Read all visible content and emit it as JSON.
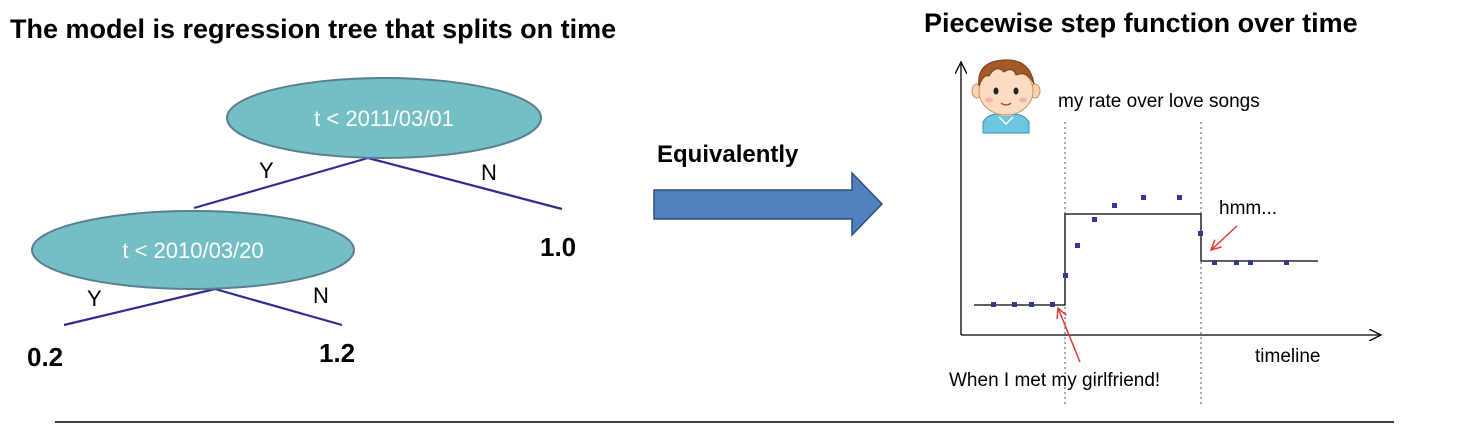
{
  "left_panel": {
    "title": "The model is regression tree that splits on time",
    "root_node": "t < 2011/03/01",
    "child_node": "t < 2010/03/20",
    "root_yes": "Y",
    "root_no": "N",
    "child_yes": "Y",
    "child_no": "N",
    "leaf_root_no": "1.0",
    "leaf_child_yes": "0.2",
    "leaf_child_no": "1.2"
  },
  "middle": {
    "label": "Equivalently",
    "arrow_color": "#4f81bd"
  },
  "right_panel": {
    "title": "Piecewise step function over time",
    "series_label": "my rate over love songs",
    "x_axis_label": "timeline",
    "annotation_hmm": "hmm...",
    "annotation_met": "When I met my girlfriend!",
    "boy_icon": "boy-face-icon"
  },
  "colors": {
    "node_fill": "#74bfc4",
    "node_stroke": "#5a7f93",
    "tree_line": "#2e2e8f",
    "point": "#2e3b8f",
    "annotation_arrow": "#e03a3a"
  },
  "chart_data": {
    "type": "scatter",
    "x_axis": "timeline",
    "series_label": "my rate over love songs",
    "step_levels": [
      "low",
      "high",
      "medium"
    ],
    "change_points": [
      "When I met my girlfriend!",
      "hmm..."
    ]
  }
}
